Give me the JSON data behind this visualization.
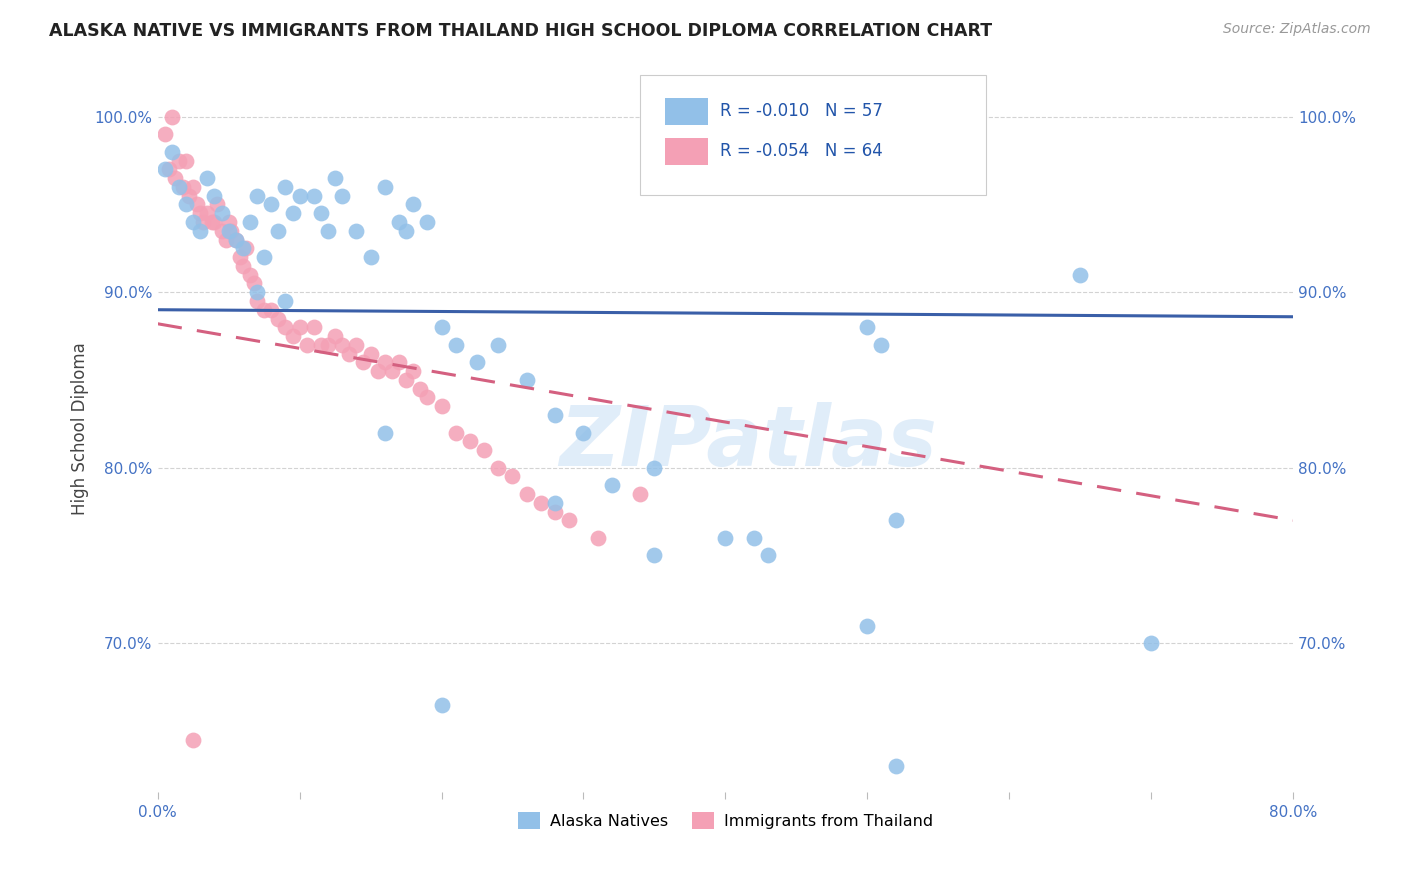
{
  "title": "ALASKA NATIVE VS IMMIGRANTS FROM THAILAND HIGH SCHOOL DIPLOMA CORRELATION CHART",
  "source": "Source: ZipAtlas.com",
  "ylabel": "High School Diploma",
  "legend_label1": "Alaska Natives",
  "legend_label2": "Immigrants from Thailand",
  "legend_r1": "-0.010",
  "legend_n1": "57",
  "legend_r2": "-0.054",
  "legend_n2": "64",
  "xmin": 0.0,
  "xmax": 0.8,
  "ymin": 0.615,
  "ymax": 1.03,
  "yticks": [
    0.7,
    0.8,
    0.9,
    1.0
  ],
  "ytick_labels": [
    "70.0%",
    "80.0%",
    "90.0%",
    "100.0%"
  ],
  "xticks": [
    0.0,
    0.1,
    0.2,
    0.3,
    0.4,
    0.5,
    0.6,
    0.7,
    0.8
  ],
  "xtick_labels": [
    "0.0%",
    "",
    "",
    "",
    "",
    "",
    "",
    "",
    "80.0%"
  ],
  "color_blue": "#92C0E8",
  "color_pink": "#F4A0B5",
  "color_blue_line": "#3A5FA8",
  "color_pink_line": "#D46080",
  "background_color": "#FFFFFF",
  "watermark_text": "ZIPatlas",
  "blue_line_x0": 0.0,
  "blue_line_x1": 0.8,
  "blue_line_y0": 0.89,
  "blue_line_y1": 0.886,
  "pink_line_x0": 0.0,
  "pink_line_x1": 0.8,
  "pink_line_y0": 0.882,
  "pink_line_y1": 0.77,
  "blue_scatter_x": [
    0.005,
    0.01,
    0.015,
    0.02,
    0.025,
    0.03,
    0.035,
    0.04,
    0.045,
    0.05,
    0.055,
    0.06,
    0.065,
    0.07,
    0.075,
    0.08,
    0.085,
    0.09,
    0.095,
    0.1,
    0.11,
    0.115,
    0.12,
    0.125,
    0.13,
    0.14,
    0.15,
    0.16,
    0.17,
    0.175,
    0.18,
    0.19,
    0.2,
    0.21,
    0.225,
    0.24,
    0.26,
    0.28,
    0.3,
    0.32,
    0.35,
    0.4,
    0.43,
    0.5,
    0.51,
    0.52,
    0.65,
    0.7,
    0.07,
    0.09,
    0.16,
    0.2,
    0.28,
    0.35,
    0.42,
    0.5,
    0.52
  ],
  "blue_scatter_y": [
    0.97,
    0.98,
    0.96,
    0.95,
    0.94,
    0.935,
    0.965,
    0.955,
    0.945,
    0.935,
    0.93,
    0.925,
    0.94,
    0.955,
    0.92,
    0.95,
    0.935,
    0.96,
    0.945,
    0.955,
    0.955,
    0.945,
    0.935,
    0.965,
    0.955,
    0.935,
    0.92,
    0.96,
    0.94,
    0.935,
    0.95,
    0.94,
    0.88,
    0.87,
    0.86,
    0.87,
    0.85,
    0.83,
    0.82,
    0.79,
    0.8,
    0.76,
    0.75,
    0.88,
    0.87,
    0.77,
    0.91,
    0.7,
    0.9,
    0.895,
    0.82,
    0.665,
    0.78,
    0.75,
    0.76,
    0.71,
    0.63
  ],
  "pink_scatter_x": [
    0.005,
    0.008,
    0.01,
    0.012,
    0.015,
    0.018,
    0.02,
    0.022,
    0.025,
    0.028,
    0.03,
    0.032,
    0.035,
    0.038,
    0.04,
    0.042,
    0.045,
    0.048,
    0.05,
    0.052,
    0.055,
    0.058,
    0.06,
    0.062,
    0.065,
    0.068,
    0.07,
    0.075,
    0.08,
    0.085,
    0.09,
    0.095,
    0.1,
    0.105,
    0.11,
    0.115,
    0.12,
    0.125,
    0.13,
    0.135,
    0.14,
    0.145,
    0.15,
    0.155,
    0.16,
    0.165,
    0.17,
    0.175,
    0.18,
    0.185,
    0.19,
    0.2,
    0.21,
    0.22,
    0.23,
    0.24,
    0.25,
    0.26,
    0.27,
    0.28,
    0.29,
    0.31,
    0.34,
    0.025
  ],
  "pink_scatter_y": [
    0.99,
    0.97,
    1.0,
    0.965,
    0.975,
    0.96,
    0.975,
    0.955,
    0.96,
    0.95,
    0.945,
    0.94,
    0.945,
    0.94,
    0.94,
    0.95,
    0.935,
    0.93,
    0.94,
    0.935,
    0.93,
    0.92,
    0.915,
    0.925,
    0.91,
    0.905,
    0.895,
    0.89,
    0.89,
    0.885,
    0.88,
    0.875,
    0.88,
    0.87,
    0.88,
    0.87,
    0.87,
    0.875,
    0.87,
    0.865,
    0.87,
    0.86,
    0.865,
    0.855,
    0.86,
    0.855,
    0.86,
    0.85,
    0.855,
    0.845,
    0.84,
    0.835,
    0.82,
    0.815,
    0.81,
    0.8,
    0.795,
    0.785,
    0.78,
    0.775,
    0.77,
    0.76,
    0.785,
    0.645
  ]
}
